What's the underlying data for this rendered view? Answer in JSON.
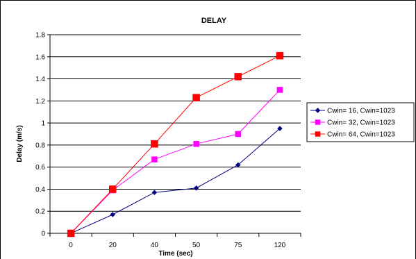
{
  "chart_data": {
    "type": "line",
    "title": "DELAY",
    "xlabel": "Time (sec)",
    "ylabel": "Delay (m/s)",
    "categories": [
      "0",
      "20",
      "40",
      "50",
      "75",
      "120"
    ],
    "ylim": [
      0,
      1.8
    ],
    "yticks": [
      "0",
      "0.2",
      "0.4",
      "0.6",
      "0.8",
      "1",
      "1.2",
      "1.4",
      "1.6",
      "1.8"
    ],
    "grid": "horizontal",
    "legend_position": "right",
    "series": [
      {
        "name": "Cwin= 16, Cwin=1023",
        "color": "#000080",
        "marker": "diamond",
        "values": [
          0,
          0.17,
          0.37,
          0.41,
          0.62,
          0.95
        ]
      },
      {
        "name": "Cwin= 32, Cwin=1023",
        "color": "#ff00ff",
        "marker": "square",
        "values": [
          0,
          0.39,
          0.67,
          0.81,
          0.9,
          1.3
        ]
      },
      {
        "name": "Cwin= 64, Cwin=1023",
        "color": "#ff0000",
        "marker": "square",
        "values": [
          0,
          0.4,
          0.81,
          1.23,
          1.42,
          1.61
        ]
      }
    ]
  }
}
